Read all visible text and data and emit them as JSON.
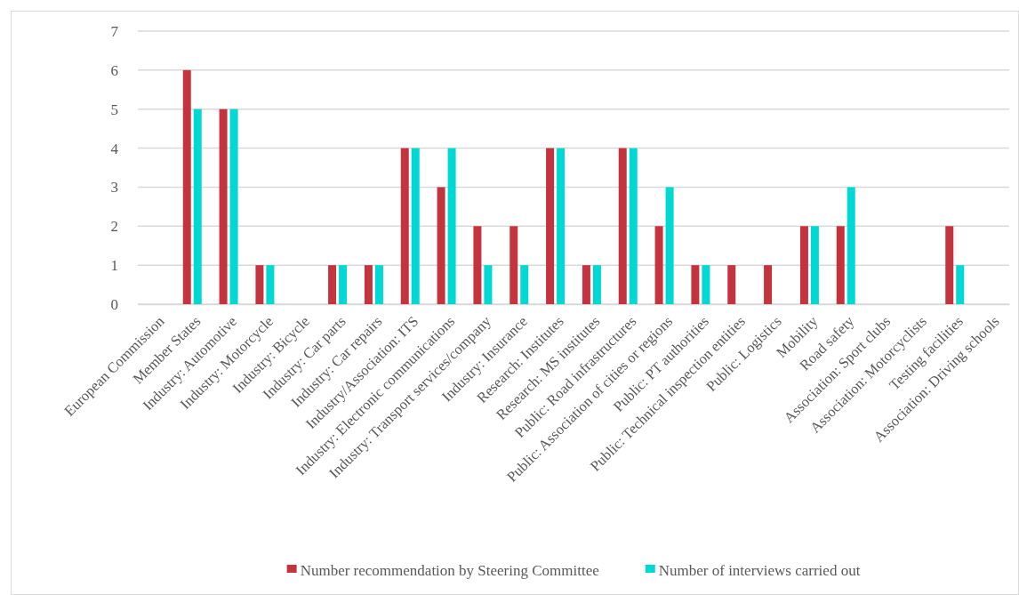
{
  "chart_data": {
    "type": "bar",
    "categories": [
      "European Commission",
      "Member States",
      "Industry: Automotive",
      "Industry: Motorcycle",
      "Industry: Bicycle",
      "Industry: Car parts",
      "Industry: Car repairs",
      "Industry/Association: ITS",
      "Industry: Electronic communications",
      "Industry: Transport services/company",
      "Industry: Insurance",
      "Research: Institutes",
      "Research: MS institutes",
      "Public: Road infrastructures",
      "Public: Association of cities or regions",
      "Public: PT authorities",
      "Public: Technical inspection entities",
      "Public: Logistics",
      "Mobility",
      "Road safety",
      "Association: Sport clubs",
      "Association: Motorcyclists",
      "Testing facilities",
      "Association: Driving schools"
    ],
    "series": [
      {
        "name": "Number recommendation by Steering Committee",
        "color": "#c3343f",
        "values": [
          0,
          6,
          5,
          1,
          0,
          1,
          1,
          4,
          3,
          2,
          2,
          4,
          1,
          4,
          2,
          1,
          1,
          1,
          2,
          2,
          0,
          0,
          2,
          0
        ]
      },
      {
        "name": "Number of interviews carried out",
        "color": "#00d9d3",
        "values": [
          0,
          5,
          5,
          1,
          0,
          1,
          1,
          4,
          4,
          1,
          1,
          4,
          1,
          4,
          3,
          1,
          0,
          0,
          2,
          3,
          0,
          0,
          1,
          0
        ]
      }
    ],
    "ylim": [
      0,
      7
    ],
    "yticks": [
      0,
      1,
      2,
      3,
      4,
      5,
      6,
      7
    ],
    "grid": "y",
    "legend": "bottom"
  }
}
